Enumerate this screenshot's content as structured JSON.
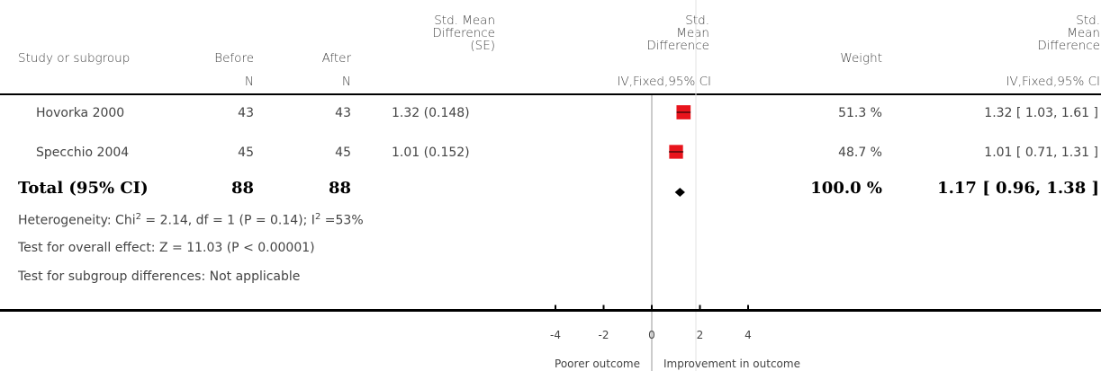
{
  "header": {
    "study": "Study or subgroup",
    "before": "Before",
    "after": "After",
    "smd_se": [
      "Std. Mean",
      "Difference",
      "(SE)"
    ],
    "plot_col": [
      "Std.",
      "Mean",
      "Difference"
    ],
    "weight": "Weight",
    "result_col": [
      "Std.",
      "Mean",
      "Difference"
    ],
    "n_before": "N",
    "n_after": "N",
    "method_plot": "IV,Fixed,95% CI",
    "method_result": "IV,Fixed,95% CI"
  },
  "studies": [
    {
      "name": "Hovorka 2000",
      "before": "43",
      "after": "43",
      "smd_se": "1.32 (0.148)",
      "weight": "51.3 %",
      "ci_text": "1.32 [ 1.03, 1.61 ]"
    },
    {
      "name": "Specchio 2004",
      "before": "45",
      "after": "45",
      "smd_se": "1.01 (0.152)",
      "weight": "48.7 %",
      "ci_text": "1.01 [ 0.71, 1.31 ]"
    }
  ],
  "total": {
    "label": "Total (95% CI)",
    "before": "88",
    "after": "88",
    "weight": "100.0 %",
    "ci_text": "1.17 [ 0.96, 1.38 ]"
  },
  "notes": {
    "heterogeneity_pre": "Heterogeneity: Chi",
    "heterogeneity_sup1": "2",
    "heterogeneity_mid": " = 2.14, df = 1 (P = 0.14); I",
    "heterogeneity_sup2": "2",
    "heterogeneity_post": " =53%",
    "overall": "Test for overall effect: Z = 11.03 (P < 0.00001)",
    "subgroup": "Test for subgroup differences: Not applicable"
  },
  "axis": {
    "left_label": "Poorer outcome",
    "right_label": "Improvement in outcome"
  },
  "colors": {
    "study_marker": "#e8141c",
    "diamond": "#000000"
  },
  "chart_data": {
    "type": "scatter",
    "title": "",
    "xlabel": "",
    "xlim": [
      -4,
      4
    ],
    "xticks": [
      -4,
      -2,
      0,
      2,
      4
    ],
    "series": [
      {
        "points": [
          {
            "study": "Hovorka 2000",
            "estimate": 1.32,
            "ci": [
              1.03,
              1.61
            ],
            "weight": 51.3
          },
          {
            "study": "Specchio 2004",
            "estimate": 1.01,
            "ci": [
              0.71,
              1.31
            ],
            "weight": 48.7
          }
        ]
      }
    ],
    "pooled": {
      "estimate": 1.17,
      "ci": [
        0.96,
        1.38
      ]
    }
  }
}
